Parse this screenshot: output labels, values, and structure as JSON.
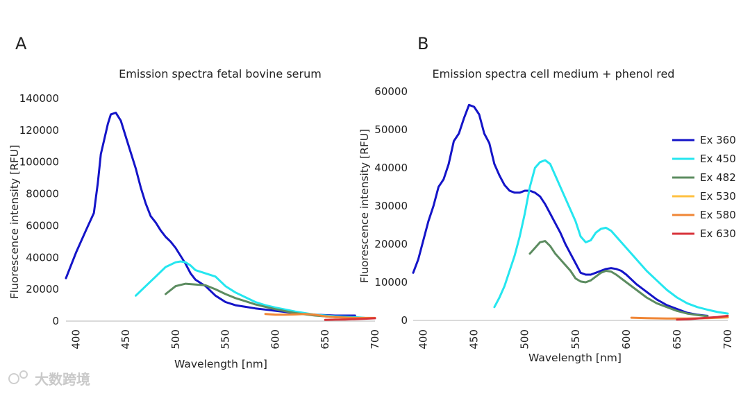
{
  "colors": {
    "Ex 360": "#1414c8",
    "Ex 450": "#25e6ef",
    "Ex 482": "#5c8c60",
    "Ex 530": "#ffc040",
    "Ex 580": "#f08636",
    "Ex 630": "#d8323a"
  },
  "watermark": "大数跨境",
  "legend": [
    "Ex 360",
    "Ex 450",
    "Ex 482",
    "Ex 530",
    "Ex 580",
    "Ex 630"
  ],
  "chart_data": [
    {
      "type": "line",
      "panel": "A",
      "title": "Emission spectra fetal bovine serum",
      "xlabel": "Wavelength [nm]",
      "ylabel": "Fluorescence intensity [RFU]",
      "xlim": [
        390,
        700
      ],
      "ylim": [
        0,
        140000
      ],
      "xticks": [
        400,
        450,
        500,
        550,
        600,
        650,
        700
      ],
      "yticks": [
        0,
        20000,
        40000,
        60000,
        80000,
        100000,
        120000,
        140000
      ],
      "series": [
        {
          "name": "Ex 360",
          "x": [
            390,
            400,
            410,
            418,
            422,
            425,
            428,
            432,
            435,
            440,
            445,
            450,
            455,
            460,
            465,
            470,
            475,
            480,
            485,
            490,
            495,
            500,
            505,
            510,
            515,
            520,
            530,
            540,
            550,
            560,
            570,
            580,
            600,
            620,
            640,
            660,
            680
          ],
          "y": [
            27000,
            43000,
            57000,
            68000,
            87000,
            105000,
            113000,
            124000,
            130000,
            131000,
            126000,
            116000,
            106000,
            96000,
            84000,
            74000,
            66000,
            62000,
            57000,
            53000,
            50000,
            46000,
            41000,
            36000,
            30000,
            26000,
            22000,
            16000,
            12000,
            10000,
            9000,
            8000,
            6500,
            5000,
            4000,
            3500,
            3500
          ]
        },
        {
          "name": "Ex 450",
          "x": [
            460,
            470,
            480,
            490,
            500,
            505,
            510,
            515,
            520,
            530,
            540,
            550,
            560,
            570,
            580,
            590,
            600,
            620,
            640,
            660,
            680,
            690
          ],
          "y": [
            16000,
            22000,
            28000,
            34000,
            37000,
            37500,
            37000,
            35000,
            32000,
            30000,
            28000,
            22000,
            18000,
            15000,
            12000,
            10000,
            8500,
            6000,
            4000,
            3000,
            2500,
            2000
          ]
        },
        {
          "name": "Ex 482",
          "x": [
            490,
            500,
            510,
            520,
            530,
            540,
            550,
            560,
            570,
            580,
            590,
            600,
            620,
            640,
            660,
            680,
            690
          ],
          "y": [
            17000,
            22000,
            23500,
            23000,
            22500,
            20000,
            17000,
            14500,
            12500,
            10500,
            9000,
            7500,
            5000,
            3500,
            2500,
            2000,
            1800
          ]
        },
        {
          "name": "Ex 580",
          "x": [
            590,
            600,
            610,
            620,
            630,
            640,
            650,
            660,
            670,
            680,
            690,
            700
          ],
          "y": [
            4500,
            4000,
            4000,
            4200,
            4500,
            4000,
            3000,
            2500,
            2200,
            2000,
            2000,
            2000
          ]
        },
        {
          "name": "Ex 630",
          "x": [
            650,
            660,
            670,
            680,
            690,
            700
          ],
          "y": [
            800,
            900,
            1000,
            1200,
            1500,
            1800
          ]
        }
      ]
    },
    {
      "type": "line",
      "panel": "B",
      "title": "Emission spectra cell medium + phenol red",
      "xlabel": "Wavelength [nm]",
      "ylabel": "Fluorescence intensity [RFU]",
      "xlim": [
        390,
        700
      ],
      "ylim": [
        0,
        60000
      ],
      "xticks": [
        400,
        450,
        500,
        550,
        600,
        650,
        700
      ],
      "yticks": [
        0,
        10000,
        20000,
        30000,
        40000,
        50000,
        60000
      ],
      "series": [
        {
          "name": "Ex 360",
          "x": [
            390,
            395,
            400,
            405,
            410,
            415,
            420,
            425,
            430,
            435,
            440,
            445,
            450,
            455,
            460,
            465,
            470,
            475,
            480,
            485,
            490,
            495,
            500,
            505,
            510,
            515,
            520,
            525,
            530,
            535,
            540,
            545,
            550,
            555,
            560,
            565,
            570,
            575,
            580,
            585,
            590,
            595,
            600,
            610,
            620,
            630,
            640,
            650,
            660,
            670,
            680
          ],
          "y": [
            12500,
            16000,
            21000,
            26000,
            30000,
            35000,
            37000,
            41000,
            47000,
            49000,
            53000,
            56500,
            56000,
            54000,
            49000,
            46500,
            41000,
            38000,
            35500,
            34000,
            33500,
            33500,
            34000,
            34000,
            33500,
            32500,
            30500,
            28000,
            25500,
            23000,
            20000,
            17500,
            15000,
            12500,
            12000,
            12000,
            12500,
            13000,
            13500,
            13700,
            13500,
            13000,
            12000,
            9500,
            7500,
            5500,
            4000,
            3000,
            2000,
            1500,
            1200
          ]
        },
        {
          "name": "Ex 450",
          "x": [
            470,
            475,
            480,
            485,
            490,
            495,
            500,
            505,
            510,
            515,
            520,
            525,
            530,
            535,
            540,
            545,
            550,
            555,
            560,
            565,
            570,
            575,
            580,
            585,
            590,
            595,
            600,
            610,
            620,
            630,
            640,
            650,
            660,
            670,
            680,
            690,
            700
          ],
          "y": [
            3500,
            6000,
            9000,
            13000,
            17000,
            22000,
            28000,
            35000,
            40000,
            41500,
            42000,
            41000,
            38000,
            35000,
            32000,
            29000,
            26000,
            22000,
            20500,
            21000,
            23000,
            24000,
            24300,
            23500,
            22000,
            20500,
            19000,
            16000,
            13000,
            10500,
            8000,
            6000,
            4500,
            3500,
            2800,
            2200,
            1800
          ]
        },
        {
          "name": "Ex 482",
          "x": [
            505,
            510,
            515,
            520,
            525,
            530,
            535,
            540,
            545,
            550,
            555,
            560,
            565,
            570,
            575,
            580,
            585,
            590,
            595,
            600,
            610,
            620,
            630,
            640,
            650,
            660,
            670,
            680
          ],
          "y": [
            17500,
            19000,
            20500,
            20800,
            19500,
            17500,
            16000,
            14500,
            13000,
            11000,
            10200,
            10000,
            10500,
            11500,
            12500,
            13000,
            12800,
            12000,
            11000,
            10000,
            8000,
            6000,
            4500,
            3500,
            2500,
            1800,
            1400,
            1100
          ]
        },
        {
          "name": "Ex 580",
          "x": [
            605,
            620,
            640,
            660,
            680,
            700
          ],
          "y": [
            700,
            600,
            500,
            500,
            600,
            800
          ]
        },
        {
          "name": "Ex 630",
          "x": [
            650,
            660,
            670,
            680,
            690,
            700
          ],
          "y": [
            200,
            300,
            500,
            700,
            900,
            1200
          ]
        }
      ]
    }
  ]
}
